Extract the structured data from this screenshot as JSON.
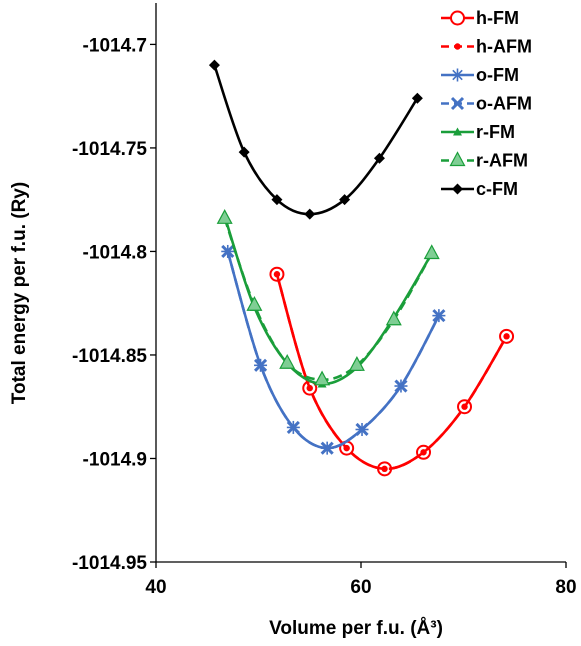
{
  "chart_data": {
    "type": "line",
    "xlabel": "Volume per f.u. (Å³)",
    "ylabel": "Total energy per f.u. (Ry)",
    "xlim": [
      40,
      80
    ],
    "ylim": [
      -1014.95,
      -1014.68
    ],
    "x_ticks": [
      "40",
      "60",
      "80"
    ],
    "y_ticks": [
      "-1014.7",
      "-1014.75",
      "-1014.8",
      "-1014.85",
      "-1014.9",
      "-1014.95"
    ],
    "legend_placement": "top-right",
    "series": [
      {
        "name": "h-FM",
        "color": "#ff0000",
        "dash": "solid",
        "marker": "open-circle",
        "x": [
          51.8,
          55.0,
          58.6,
          62.3,
          66.1,
          70.1,
          74.2
        ],
        "y": [
          -1014.811,
          -1014.866,
          -1014.895,
          -1014.905,
          -1014.897,
          -1014.875,
          -1014.841
        ]
      },
      {
        "name": "h-AFM",
        "color": "#ff0000",
        "dash": "dashed",
        "marker": "small-dot",
        "x": [
          51.8,
          55.0,
          58.6,
          62.3,
          66.1,
          70.1,
          74.2
        ],
        "y": [
          -1014.811,
          -1014.866,
          -1014.895,
          -1014.905,
          -1014.897,
          -1014.875,
          -1014.841
        ]
      },
      {
        "name": "o-FM",
        "color": "#4472c4",
        "dash": "solid",
        "marker": "star",
        "x": [
          47.0,
          50.2,
          53.4,
          56.7,
          60.1,
          63.9,
          67.6
        ],
        "y": [
          -1014.8,
          -1014.855,
          -1014.885,
          -1014.895,
          -1014.886,
          -1014.865,
          -1014.831
        ]
      },
      {
        "name": "o-AFM",
        "color": "#4472c4",
        "dash": "dashed",
        "marker": "x-cross",
        "x": [
          47.0,
          50.2,
          53.4,
          56.7,
          60.1,
          63.9,
          67.6
        ],
        "y": [
          -1014.8,
          -1014.855,
          -1014.885,
          -1014.895,
          -1014.886,
          -1014.865,
          -1014.831
        ]
      },
      {
        "name": "r-FM",
        "color": "#1a9e3a",
        "dash": "solid",
        "marker": "small-triangle",
        "x": [
          46.7,
          49.6,
          52.8,
          56.2,
          59.6,
          63.2,
          66.9
        ],
        "y": [
          -1014.783,
          -1014.827,
          -1014.854,
          -1014.864,
          -1014.856,
          -1014.832,
          -1014.801
        ]
      },
      {
        "name": "r-AFM",
        "color": "#1a9e3a",
        "dash": "dashed",
        "marker": "triangle",
        "x": [
          46.7,
          49.6,
          52.8,
          56.2,
          59.6,
          63.2,
          66.9
        ],
        "y": [
          -1014.784,
          -1014.826,
          -1014.854,
          -1014.862,
          -1014.855,
          -1014.833,
          -1014.801
        ]
      },
      {
        "name": "c-FM",
        "color": "#000000",
        "dash": "solid",
        "marker": "diamond",
        "x": [
          45.7,
          48.6,
          51.8,
          55.0,
          58.4,
          61.8,
          65.5
        ],
        "y": [
          -1014.71,
          -1014.752,
          -1014.775,
          -1014.782,
          -1014.775,
          -1014.755,
          -1014.726
        ]
      }
    ]
  }
}
